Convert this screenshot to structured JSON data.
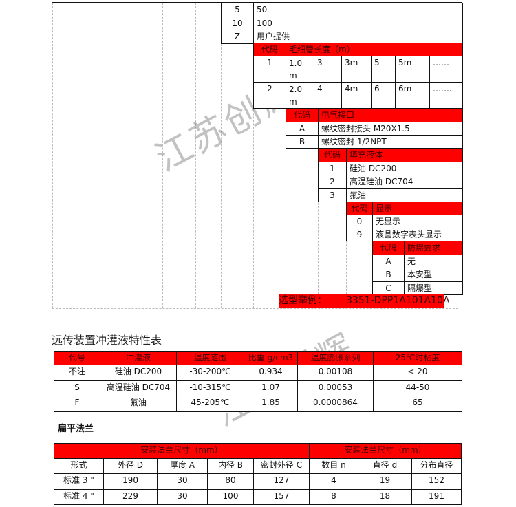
{
  "watermark": "江苏创辉",
  "range_table": {
    "rows": [
      [
        "5",
        "50"
      ],
      [
        "10",
        "100"
      ],
      [
        "Z",
        "用户提供"
      ]
    ]
  },
  "capillary": {
    "header": [
      "代码",
      "毛细管长度（m）"
    ],
    "rows": [
      [
        "1",
        "1.0 m",
        "3",
        "3m",
        "5",
        "5m",
        "……"
      ],
      [
        "2",
        "2.0 m",
        "4",
        "4m",
        "6",
        "6m",
        "……."
      ]
    ]
  },
  "electrical": {
    "header": [
      "代码",
      "电气接口"
    ],
    "rows": [
      [
        "A",
        "螺纹密封接头  M20X1.5"
      ],
      [
        "B",
        "螺纹密封  1/2NPT"
      ]
    ]
  },
  "fill": {
    "header": [
      "代码",
      "填充液体"
    ],
    "rows": [
      [
        "1",
        "硅油 DC200"
      ],
      [
        "2",
        "高温硅油 DC704"
      ],
      [
        "3",
        "氟油"
      ]
    ]
  },
  "display": {
    "header": [
      "代码",
      "显示"
    ],
    "rows": [
      [
        "0",
        "无显示"
      ],
      [
        "9",
        "液晶数字表头显示"
      ]
    ]
  },
  "explosion": {
    "header": [
      "代码",
      "防爆要求"
    ],
    "rows": [
      [
        "A",
        "无"
      ],
      [
        "B",
        "本安型"
      ],
      [
        "C",
        "隔爆型"
      ]
    ]
  },
  "example": {
    "label": "选型举例：",
    "value": "3351-DPP1A101A10A"
  },
  "fill_fluid_table": {
    "title": "远传装置冲灌液特性表",
    "header": [
      "代号",
      "冲灌液",
      "温度范围",
      "比重 g/cm3",
      "温度膨胀系列",
      "25℃时粘度"
    ],
    "rows": [
      [
        "不注",
        "硅油 DC200",
        "-30-200℃",
        "0.934",
        "0.00108",
        "< 20"
      ],
      [
        "S",
        "高温硅油 DC704",
        "-10-315℃",
        "1.07",
        "0.00053",
        "44-50"
      ],
      [
        "F",
        "氟油",
        "45-205℃",
        "1.85",
        "0.0000864",
        "65"
      ]
    ]
  },
  "flange_table": {
    "title": "扁平法兰",
    "group_headers": [
      "安装法兰尺寸（mm）",
      "安装法兰尺寸（mm）"
    ],
    "header": [
      "形式",
      "外径 D",
      "厚度 A",
      "内径 B",
      "密封外径 C",
      "数目 n",
      "直径 d",
      "分布直径"
    ],
    "rows": [
      [
        "标准 3 \"",
        "190",
        "30",
        "80",
        "127",
        "4",
        "19",
        "152"
      ],
      [
        "标准 4 \"",
        "229",
        "30",
        "100",
        "157",
        "8",
        "18",
        "191"
      ]
    ]
  },
  "colors": {
    "header_red": "#ff0000",
    "border": "#111111"
  }
}
